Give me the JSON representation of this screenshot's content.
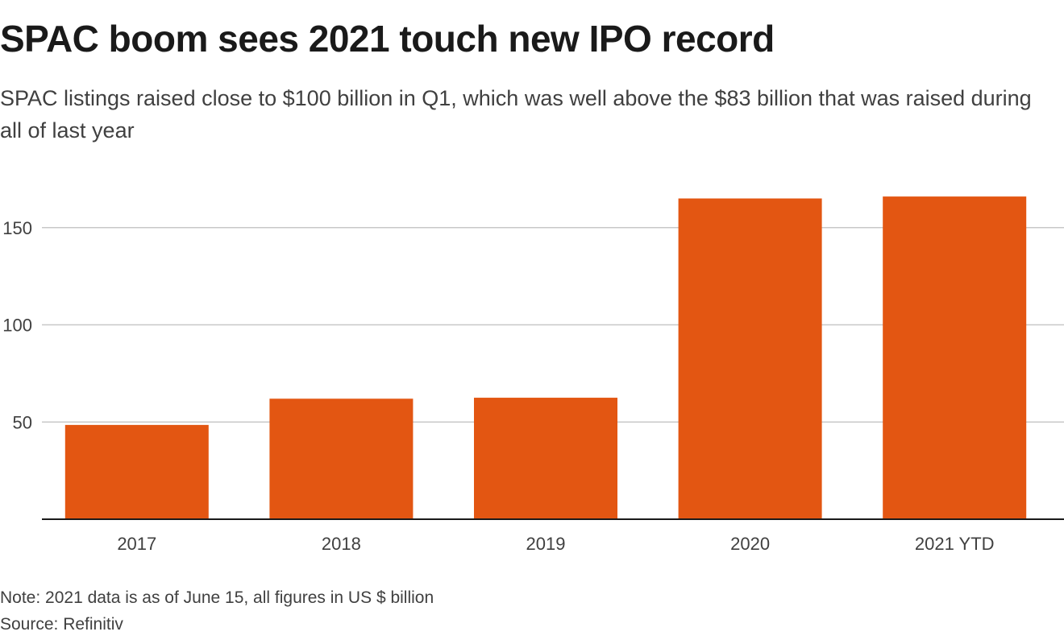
{
  "header": {
    "title": "SPAC boom sees 2021 touch new IPO record",
    "subtitle": "SPAC listings raised close to $100 billion in Q1, which was well above the $83 billion that was raised during all of last year"
  },
  "footer": {
    "note": "Note: 2021 data is as of June 15, all figures in US $ billion",
    "source": "Source: Refinitiv"
  },
  "colors": {
    "bar": "#e35612",
    "grid": "#c8c8c8",
    "axis": "#1a1a1a"
  },
  "chart_data": {
    "type": "bar",
    "title": "",
    "xlabel": "",
    "ylabel": "",
    "categories": [
      "2017",
      "2018",
      "2019",
      "2020",
      "2021 YTD"
    ],
    "values": [
      48.5,
      62,
      62.5,
      165,
      166
    ],
    "ylim": [
      0,
      173
    ],
    "yticks": [
      50,
      100,
      150
    ],
    "grid": true
  }
}
